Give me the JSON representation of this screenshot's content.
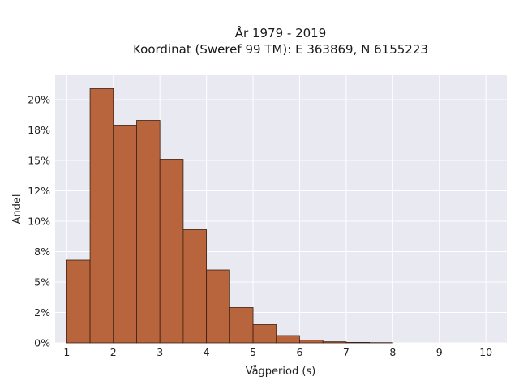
{
  "chart_data": {
    "type": "bar",
    "title_lines": [
      "År 1979 - 2019",
      "Koordinat (Sweref 99 TM): E 363869, N 6155223"
    ],
    "xlabel": "Vågperiod (s)",
    "ylabel": "Andel",
    "xlim": [
      0.75,
      10.45
    ],
    "ylim": [
      0,
      0.22
    ],
    "x_ticks": [
      1,
      2,
      3,
      4,
      5,
      6,
      7,
      8,
      9,
      10
    ],
    "y_ticks": [
      0,
      0.025,
      0.05,
      0.075,
      0.1,
      0.125,
      0.15,
      0.175,
      0.2
    ],
    "y_tick_labels": [
      "0%",
      "2%",
      "5%",
      "8%",
      "10%",
      "12%",
      "15%",
      "18%",
      "20%"
    ],
    "bin_edges": [
      1.0,
      1.5,
      2.0,
      2.5,
      3.0,
      3.5,
      4.0,
      4.5,
      5.0,
      5.5,
      6.0,
      6.5,
      7.0,
      7.5,
      8.0
    ],
    "values": [
      0.068,
      0.209,
      0.179,
      0.183,
      0.151,
      0.093,
      0.06,
      0.029,
      0.015,
      0.006,
      0.0022,
      0.0009,
      0.0004,
      0.0002
    ],
    "grid": true,
    "colors": {
      "bar_fill": "#b8643c",
      "bar_edge": "#3a1f12",
      "plot_background": "#e9e9f2",
      "grid": "#ffffff"
    }
  }
}
